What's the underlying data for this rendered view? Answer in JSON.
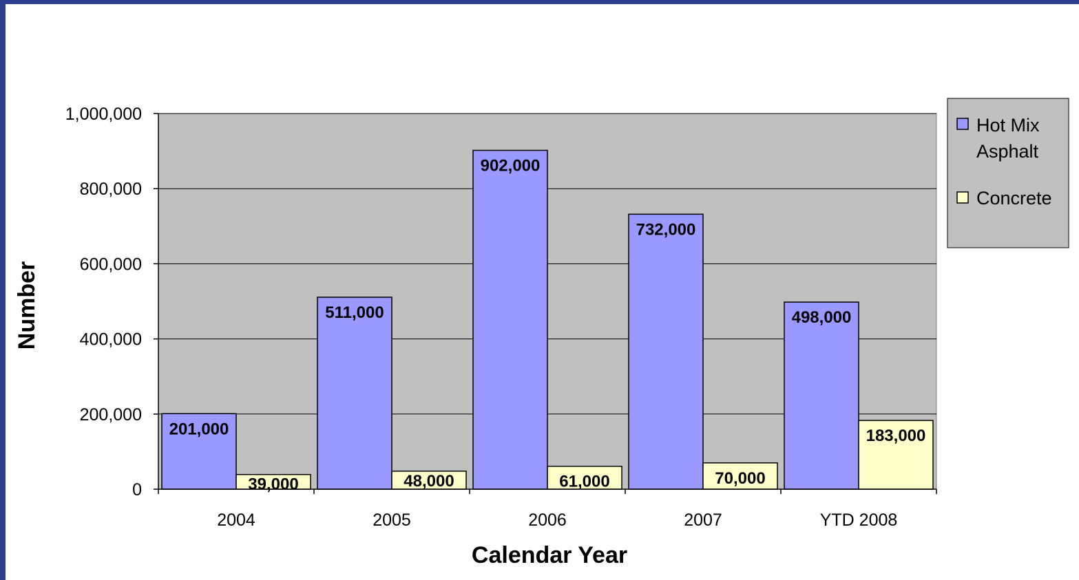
{
  "chart_data": {
    "type": "bar",
    "categories": [
      "2004",
      "2005",
      "2006",
      "2007",
      "YTD 2008"
    ],
    "series": [
      {
        "name": "Hot Mix Asphalt",
        "values": [
          201000,
          511000,
          902000,
          732000,
          498000
        ],
        "color": "#9999ff",
        "labels": [
          "201,000",
          "511,000",
          "902,000",
          "732,000",
          "498,000"
        ]
      },
      {
        "name": "Concrete",
        "values": [
          39000,
          48000,
          61000,
          70000,
          183000
        ],
        "color": "#ffffcc",
        "labels": [
          "39,000",
          "48,000",
          "61,000",
          "70,000",
          "183,000"
        ]
      }
    ],
    "title": "",
    "xlabel": "Calendar Year",
    "ylabel": "Number",
    "ylim": [
      0,
      1000000
    ],
    "yticks": [
      0,
      200000,
      400000,
      600000,
      800000,
      1000000
    ],
    "ytick_labels": [
      "0",
      "200,000",
      "400,000",
      "600,000",
      "800,000",
      "1,000,000"
    ],
    "grid": true,
    "plot_background": "#c0c0c0",
    "legend_position": "right",
    "legend_background": "#c0c0c0"
  }
}
